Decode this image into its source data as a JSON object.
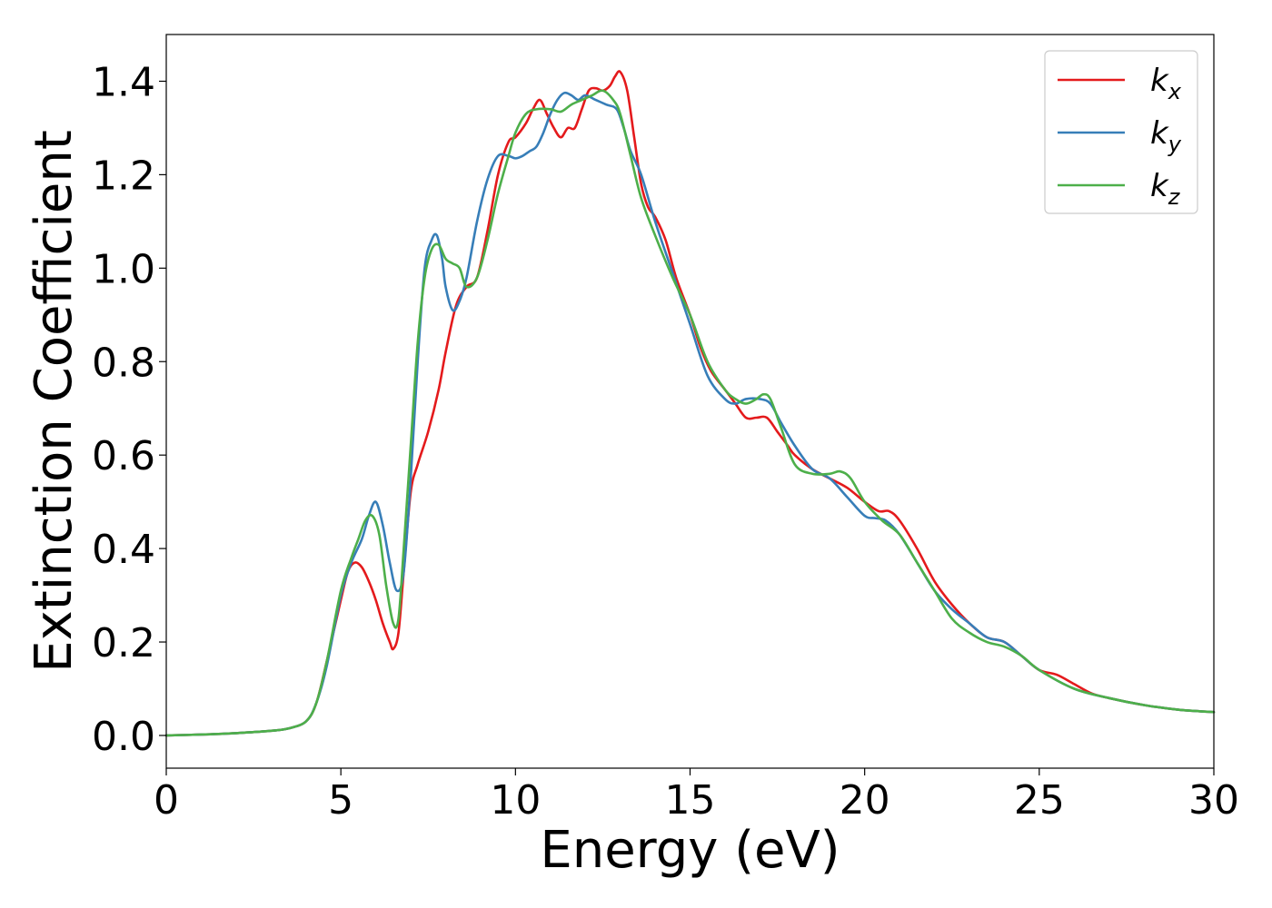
{
  "chart_data": {
    "type": "line",
    "xlabel": "Energy (eV)",
    "ylabel": "Extinction Coefficient",
    "xlim": [
      0,
      30
    ],
    "ylim": [
      -0.07,
      1.5
    ],
    "xticks": [
      0,
      5,
      10,
      15,
      20,
      25,
      30
    ],
    "yticks": [
      0.0,
      0.2,
      0.4,
      0.6,
      0.8,
      1.0,
      1.2,
      1.4
    ],
    "xtick_labels": [
      "0",
      "5",
      "10",
      "15",
      "20",
      "25",
      "30"
    ],
    "ytick_labels": [
      "0.0",
      "0.2",
      "0.4",
      "0.6",
      "0.8",
      "1.0",
      "1.2",
      "1.4"
    ],
    "grid": false,
    "legend_position": "top-right",
    "series": [
      {
        "name": "k",
        "subscript": "x",
        "color": "#e41a1c",
        "x": [
          0,
          1,
          2,
          3,
          3.5,
          4,
          4.3,
          4.6,
          5,
          5.2,
          5.4,
          5.6,
          5.8,
          6.0,
          6.2,
          6.4,
          6.5,
          6.65,
          6.8,
          7.0,
          7.2,
          7.5,
          7.8,
          8.0,
          8.3,
          8.6,
          8.9,
          9.2,
          9.5,
          9.8,
          10.0,
          10.3,
          10.5,
          10.7,
          10.9,
          11.1,
          11.3,
          11.5,
          11.7,
          11.9,
          12.1,
          12.3,
          12.5,
          12.7,
          12.85,
          13.0,
          13.2,
          13.4,
          13.6,
          13.8,
          14.0,
          14.3,
          14.6,
          15.0,
          15.3,
          15.6,
          16.0,
          16.3,
          16.6,
          16.9,
          17.2,
          17.5,
          17.8,
          18.0,
          18.5,
          19.0,
          19.5,
          20.0,
          20.4,
          20.7,
          21.0,
          21.5,
          22.0,
          22.5,
          23.0,
          23.5,
          24.0,
          24.5,
          25.0,
          25.5,
          26.0,
          26.5,
          27.0,
          28.0,
          29.0,
          30.0
        ],
        "y": [
          0.0,
          0.002,
          0.005,
          0.01,
          0.015,
          0.03,
          0.07,
          0.16,
          0.29,
          0.35,
          0.37,
          0.36,
          0.33,
          0.29,
          0.24,
          0.2,
          0.185,
          0.22,
          0.35,
          0.52,
          0.58,
          0.65,
          0.74,
          0.82,
          0.92,
          0.96,
          0.98,
          1.08,
          1.2,
          1.27,
          1.28,
          1.31,
          1.34,
          1.36,
          1.33,
          1.3,
          1.28,
          1.3,
          1.3,
          1.34,
          1.38,
          1.385,
          1.38,
          1.39,
          1.41,
          1.42,
          1.38,
          1.28,
          1.18,
          1.13,
          1.11,
          1.06,
          0.98,
          0.9,
          0.83,
          0.78,
          0.74,
          0.71,
          0.68,
          0.68,
          0.68,
          0.65,
          0.62,
          0.6,
          0.57,
          0.55,
          0.53,
          0.5,
          0.48,
          0.48,
          0.46,
          0.4,
          0.33,
          0.28,
          0.24,
          0.21,
          0.2,
          0.17,
          0.14,
          0.13,
          0.11,
          0.09,
          0.08,
          0.065,
          0.055,
          0.05
        ]
      },
      {
        "name": "k",
        "subscript": "y",
        "color": "#377eb8",
        "x": [
          0,
          1,
          2,
          3,
          3.5,
          4,
          4.3,
          4.6,
          5,
          5.3,
          5.6,
          5.8,
          6.0,
          6.2,
          6.4,
          6.6,
          6.8,
          7.0,
          7.2,
          7.4,
          7.6,
          7.75,
          7.9,
          8.0,
          8.2,
          8.4,
          8.6,
          8.9,
          9.2,
          9.5,
          9.8,
          10.0,
          10.2,
          10.4,
          10.6,
          10.8,
          11.0,
          11.2,
          11.4,
          11.6,
          11.8,
          12.0,
          12.3,
          12.6,
          12.9,
          13.1,
          13.3,
          13.6,
          14.0,
          14.5,
          15.0,
          15.5,
          16.0,
          16.3,
          16.6,
          17.0,
          17.3,
          17.6,
          18.0,
          18.5,
          19.0,
          19.5,
          20.0,
          20.3,
          20.6,
          21.0,
          21.5,
          22.0,
          22.5,
          23.0,
          23.5,
          24.0,
          24.5,
          25.0,
          26.0,
          27.0,
          28.0,
          29.0,
          30.0
        ],
        "y": [
          0.0,
          0.002,
          0.005,
          0.01,
          0.015,
          0.03,
          0.07,
          0.15,
          0.3,
          0.37,
          0.42,
          0.47,
          0.5,
          0.45,
          0.37,
          0.31,
          0.35,
          0.55,
          0.8,
          1.0,
          1.06,
          1.07,
          1.02,
          0.96,
          0.91,
          0.93,
          0.98,
          1.1,
          1.19,
          1.24,
          1.24,
          1.235,
          1.24,
          1.25,
          1.26,
          1.29,
          1.33,
          1.36,
          1.375,
          1.37,
          1.36,
          1.37,
          1.36,
          1.35,
          1.34,
          1.3,
          1.25,
          1.2,
          1.1,
          0.99,
          0.88,
          0.77,
          0.72,
          0.71,
          0.72,
          0.72,
          0.71,
          0.67,
          0.62,
          0.57,
          0.55,
          0.51,
          0.47,
          0.465,
          0.46,
          0.43,
          0.37,
          0.31,
          0.27,
          0.24,
          0.21,
          0.2,
          0.17,
          0.14,
          0.1,
          0.08,
          0.065,
          0.055,
          0.05
        ]
      },
      {
        "name": "k",
        "subscript": "z",
        "color": "#4daf4a",
        "x": [
          0,
          1,
          2,
          3,
          3.5,
          4,
          4.3,
          4.6,
          5,
          5.3,
          5.5,
          5.7,
          5.9,
          6.1,
          6.3,
          6.5,
          6.65,
          6.8,
          7.0,
          7.2,
          7.4,
          7.6,
          7.8,
          8.0,
          8.2,
          8.4,
          8.6,
          8.9,
          9.2,
          9.5,
          9.8,
          10.0,
          10.3,
          10.6,
          11.0,
          11.3,
          11.6,
          11.9,
          12.2,
          12.5,
          12.8,
          13.0,
          13.3,
          13.6,
          14.0,
          14.5,
          15.0,
          15.5,
          16.0,
          16.3,
          16.6,
          16.9,
          17.1,
          17.3,
          17.6,
          18.0,
          18.5,
          19.0,
          19.3,
          19.6,
          20.0,
          20.5,
          21.0,
          21.5,
          22.0,
          22.5,
          23.0,
          23.5,
          24.0,
          24.5,
          25.0,
          26.0,
          27.0,
          28.0,
          29.0,
          30.0
        ],
        "y": [
          0.0,
          0.002,
          0.005,
          0.01,
          0.015,
          0.03,
          0.07,
          0.16,
          0.31,
          0.38,
          0.42,
          0.46,
          0.47,
          0.43,
          0.32,
          0.24,
          0.25,
          0.4,
          0.62,
          0.84,
          0.98,
          1.04,
          1.05,
          1.02,
          1.01,
          1.0,
          0.96,
          0.98,
          1.06,
          1.16,
          1.24,
          1.29,
          1.33,
          1.34,
          1.34,
          1.335,
          1.35,
          1.36,
          1.37,
          1.38,
          1.36,
          1.33,
          1.24,
          1.15,
          1.07,
          0.98,
          0.9,
          0.8,
          0.74,
          0.72,
          0.71,
          0.72,
          0.73,
          0.72,
          0.66,
          0.58,
          0.56,
          0.56,
          0.565,
          0.55,
          0.5,
          0.46,
          0.43,
          0.37,
          0.31,
          0.25,
          0.22,
          0.2,
          0.19,
          0.17,
          0.14,
          0.1,
          0.08,
          0.065,
          0.055,
          0.05
        ]
      }
    ]
  }
}
